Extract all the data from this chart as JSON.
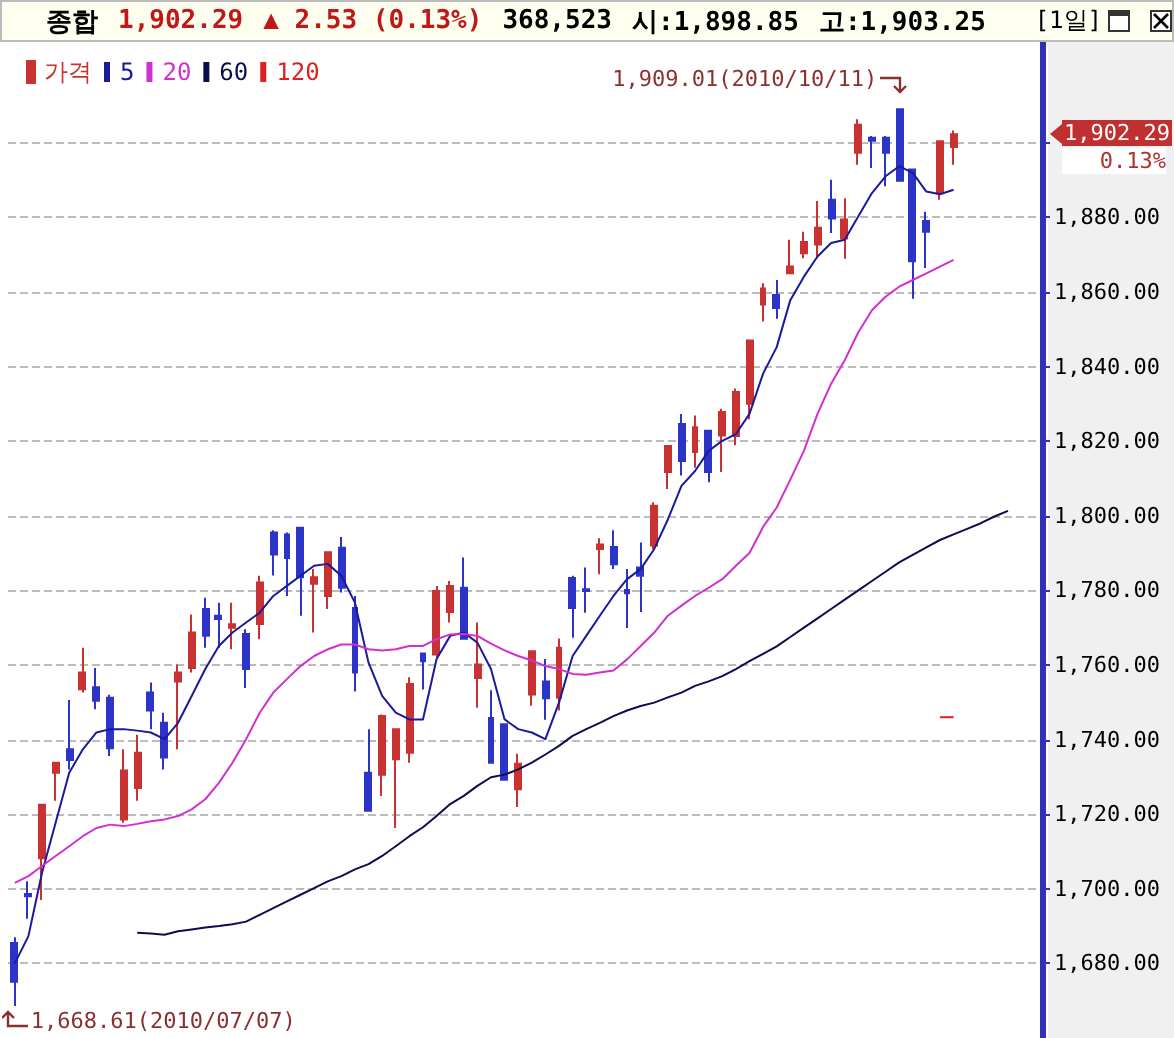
{
  "chart_data": {
    "type": "candlestick",
    "title": "종합",
    "annotations": [
      "1,902.29",
      "▲ 2.53 (0.13%)",
      "368,523",
      "시:1,898.85",
      "고:1,903.25",
      "[1일]",
      "1,909.01(2010/10/11)",
      "1,668.61(2010/07/07)",
      "1,902.29",
      "0.13%"
    ],
    "categories": [
      null,
      null,
      null,
      null,
      null,
      null,
      null,
      null,
      null,
      null,
      null,
      null,
      null,
      null,
      null,
      null,
      null,
      null,
      null,
      null,
      null,
      null,
      null,
      null,
      null,
      null,
      null,
      null,
      null,
      null,
      null,
      null,
      null,
      null,
      null,
      null,
      null,
      null,
      null,
      null,
      null,
      null,
      null,
      null,
      null,
      null,
      null,
      null,
      null,
      null,
      null,
      null,
      null,
      null,
      null,
      null,
      null,
      null,
      null,
      null,
      null,
      null,
      null,
      null,
      null,
      null,
      null,
      null,
      null,
      null,
      null,
      null,
      null,
      null,
      null,
      null
    ],
    "series": [
      {
        "name": "가격",
        "color": "#c83232",
        "ohlc": [
          [
            1685.5,
            1687,
            1668.61,
            1675.1
          ],
          [
            1698.6,
            1702,
            1692,
            1698
          ],
          [
            1708.2,
            1722.5,
            1697,
            1722.5
          ],
          [
            1731.1,
            1734,
            1723.6,
            1733.8
          ],
          [
            1737.4,
            1750.6,
            1732,
            1734.5
          ],
          [
            1753.5,
            1764.6,
            1752.6,
            1758
          ],
          [
            1754,
            1759.2,
            1748.1,
            1750.4
          ],
          [
            1751.2,
            1752,
            1735.6,
            1737.7
          ],
          [
            1718.6,
            1737.4,
            1717.7,
            1731.7
          ],
          [
            1727,
            1741.3,
            1723.6,
            1736.5
          ],
          [
            1752.6,
            1755.3,
            1742.8,
            1747.8
          ],
          [
            1744.5,
            1747.2,
            1732,
            1735.2
          ],
          [
            1755.6,
            1760.1,
            1737.4,
            1758
          ],
          [
            1759.2,
            1773.5,
            1758,
            1768.7
          ],
          [
            1775,
            1778,
            1764.6,
            1767.8
          ],
          [
            1773.2,
            1776.7,
            1764.6,
            1772.3
          ],
          [
            1770,
            1776.7,
            1764.2,
            1770.9
          ],
          [
            1768.3,
            1769.6,
            1753.8,
            1758.9
          ],
          [
            1771,
            1783.9,
            1766.9,
            1782.1
          ],
          [
            1795.5,
            1796.1,
            1784,
            1789.6
          ],
          [
            1795,
            1795.5,
            1778.5,
            1788.7
          ],
          [
            1796.8,
            1796.8,
            1773.2,
            1783.5
          ],
          [
            1781.8,
            1785.7,
            1768.7,
            1783.5
          ],
          [
            1778.5,
            1790.2,
            1775,
            1790.2
          ],
          [
            1791.4,
            1794.3,
            1779.4,
            1780.7
          ],
          [
            1775.3,
            1778.5,
            1752.9,
            1758
          ],
          [
            1731.1,
            1742.8,
            1720.9,
            1720.9
          ],
          [
            1730.6,
            1746.7,
            1724.9,
            1746.3
          ],
          [
            1734.7,
            1742.8,
            1716.3,
            1742.8
          ],
          [
            1736.5,
            1756.7,
            1733.8,
            1754.9
          ],
          [
            1763.1,
            1763.1,
            1753.4,
            1761
          ],
          [
            1762.8,
            1781.2,
            1762.1,
            1779.8
          ],
          [
            1774.2,
            1782.5,
            1771.4,
            1781.2
          ],
          [
            1780.7,
            1788.8,
            1767,
            1767
          ],
          [
            1756.5,
            1771.4,
            1748.5,
            1760.1
          ],
          [
            1745.8,
            1753.2,
            1733.8,
            1733.8
          ],
          [
            1744.1,
            1744.1,
            1729.2,
            1729.2
          ],
          [
            1726.7,
            1736.2,
            1721.9,
            1733.5
          ],
          [
            1752.1,
            1763.7,
            1749.1,
            1763.7
          ],
          [
            1755.6,
            1761.6,
            1745.3,
            1751.1
          ],
          [
            1751.2,
            1767.1,
            1747.8,
            1764.6
          ],
          [
            1783.3,
            1783.9,
            1767.3,
            1775.3
          ],
          [
            1780.3,
            1786.1,
            1774,
            1779.8
          ],
          [
            1791.1,
            1794,
            1784.3,
            1792.3
          ],
          [
            1791.6,
            1796.1,
            1785.7,
            1787
          ],
          [
            1780.1,
            1785.7,
            1769.9,
            1779.2
          ],
          [
            1786.1,
            1792.8,
            1774.2,
            1783.9
          ],
          [
            1792,
            1803.6,
            1791.1,
            1802.7
          ],
          [
            1811.7,
            1818.7,
            1807.2,
            1818.7
          ],
          [
            1824.6,
            1827.3,
            1810.8,
            1814.7
          ],
          [
            1817.1,
            1826.9,
            1812.9,
            1823.7
          ],
          [
            1822.8,
            1822.8,
            1809,
            1811.7
          ],
          [
            1821.5,
            1828.7,
            1811.7,
            1827.8
          ],
          [
            1821.4,
            1834.1,
            1818.9,
            1833.2
          ],
          [
            1830,
            1847,
            1825.9,
            1847
          ],
          [
            1856.6,
            1862.3,
            1852.1,
            1860.9
          ],
          [
            1859.2,
            1863.2,
            1852.8,
            1855.7
          ],
          [
            1865,
            1874,
            1865,
            1866.8
          ],
          [
            1870.4,
            1876.1,
            1869,
            1873.4
          ],
          [
            1872.7,
            1884.4,
            1869,
            1877.2
          ],
          [
            1884.7,
            1890.1,
            1875.8,
            1879.7
          ],
          [
            1874.3,
            1885.1,
            1868.9,
            1879.4
          ],
          [
            1897.3,
            1906.3,
            1894.1,
            1904.8
          ],
          [
            1901.3,
            1901.8,
            1893.2,
            1900.5
          ],
          [
            1901.3,
            1901.8,
            1888.3,
            1897.3
          ],
          [
            1909,
            1909.01,
            1889.8,
            1889.8
          ],
          [
            1892.8,
            1892.8,
            1858.2,
            1868.2
          ],
          [
            1879,
            1881.5,
            1866.4,
            1876.1
          ],
          [
            1886.5,
            1900.4,
            1884.7,
            1900.4
          ],
          [
            1898.85,
            1903.25,
            1894.1,
            1902.29
          ],
          null,
          null,
          null,
          null,
          null,
          null
        ],
        "colors": [
          "#2c34c8",
          "#2c34c8",
          "#c83232",
          "#c83232",
          "#2c34c8",
          "#c83232",
          "#2c34c8",
          "#2c34c8",
          "#c83232",
          "#c83232",
          "#2c34c8",
          "#2c34c8",
          "#c83232",
          "#c83232",
          "#2c34c8",
          "#2c34c8",
          "#c83232",
          "#2c34c8",
          "#c83232",
          "#2c34c8",
          "#2c34c8",
          "#2c34c8",
          "#c83232",
          "#c83232",
          "#2c34c8",
          "#2c34c8",
          "#2c34c8",
          "#c83232",
          "#c83232",
          "#c83232",
          "#2c34c8",
          "#c83232",
          "#c83232",
          "#2c34c8",
          "#c83232",
          "#2c34c8",
          "#2c34c8",
          "#c83232",
          "#c83232",
          "#2c34c8",
          "#c83232",
          "#2c34c8",
          "#2c34c8",
          "#c83232",
          "#2c34c8",
          "#2c34c8",
          "#2c34c8",
          "#c83232",
          "#c83232",
          "#2c34c8",
          "#c83232",
          "#2c34c8",
          "#c83232",
          "#c83232",
          "#c83232",
          "#c83232",
          "#2c34c8",
          "#c83232",
          "#c83232",
          "#c83232",
          "#2c34c8",
          "#c83232",
          "#c83232",
          "#2c34c8",
          "#2c34c8",
          "#2c34c8",
          "#2c34c8",
          "#2c34c8",
          "#c83232",
          "#c83232",
          null,
          null,
          null,
          null,
          null,
          null
        ]
      },
      {
        "name": "5",
        "type": "line",
        "color": "#1a1a9a",
        "values": [
          1680,
          1687.3,
          1704.3,
          1717.7,
          1731.1,
          1737.4,
          1741.9,
          1742.8,
          1742.8,
          1742.4,
          1741.9,
          1740.1,
          1744.5,
          1751.7,
          1758.9,
          1765.1,
          1768.7,
          1771.4,
          1774,
          1778.5,
          1781.2,
          1783.9,
          1786.6,
          1787.1,
          1783.9,
          1776.7,
          1760.6,
          1751.7,
          1747.2,
          1745.4,
          1745.4,
          1761.6,
          1767.8,
          1768.7,
          1766,
          1758.9,
          1745.4,
          1742.8,
          1741.9,
          1740.1,
          1749.9,
          1762.4,
          1767.8,
          1773.2,
          1778.5,
          1783,
          1785.7,
          1791.1,
          1799,
          1808,
          1812,
          1817.4,
          1820.1,
          1821.9,
          1827.3,
          1838.1,
          1845.2,
          1857.8,
          1864.1,
          1869.5,
          1873.1,
          1874,
          1880.3,
          1886.5,
          1891,
          1893.7,
          1891.9,
          1886.9,
          1886.2,
          1887.4,
          null,
          null,
          null,
          null,
          null,
          null
        ]
      },
      {
        "name": "20",
        "type": "line",
        "color": "#d030d0",
        "values": [
          1701.6,
          1703.4,
          1706.1,
          1708.8,
          1711.4,
          1714.1,
          1716.3,
          1717.2,
          1716.8,
          1717.4,
          1718.1,
          1718.6,
          1719.5,
          1721.3,
          1724,
          1728.4,
          1733.8,
          1740.1,
          1747.2,
          1752.6,
          1756.2,
          1759.7,
          1762.4,
          1764.2,
          1765.5,
          1765.5,
          1764.2,
          1763.9,
          1764.2,
          1765.1,
          1765.1,
          1766.9,
          1768.2,
          1768.3,
          1767.8,
          1765.7,
          1763.9,
          1762.4,
          1761.2,
          1759.7,
          1758.9,
          1757.6,
          1757.4,
          1758,
          1758.5,
          1761.5,
          1765.1,
          1768.7,
          1773.2,
          1775.9,
          1778.5,
          1780.7,
          1783,
          1786.6,
          1790,
          1797,
          1802.2,
          1809.7,
          1817.4,
          1827.3,
          1835.4,
          1841.7,
          1849.2,
          1855.1,
          1858.7,
          1861.4,
          1863.2,
          1865,
          1866.8,
          1868.6,
          null,
          null,
          null,
          null,
          null,
          null
        ]
      },
      {
        "name": "60",
        "type": "line",
        "color": "#0c0c50",
        "values": [
          null,
          null,
          null,
          null,
          null,
          null,
          null,
          null,
          null,
          1688.2,
          1688,
          1687.7,
          1688.6,
          1689.1,
          1689.6,
          1690,
          1690.5,
          1691.2,
          1693,
          1694.8,
          1696.6,
          1698.4,
          1700.2,
          1702,
          1703.4,
          1705.2,
          1706.6,
          1708.8,
          1711.4,
          1714.1,
          1716.5,
          1719.5,
          1722.7,
          1724.9,
          1727.6,
          1729.9,
          1730.6,
          1732,
          1733.8,
          1736,
          1738.3,
          1741,
          1742.8,
          1744.5,
          1746.3,
          1747.8,
          1749,
          1749.9,
          1751.3,
          1752.6,
          1754.4,
          1755.6,
          1757,
          1758.9,
          1761,
          1763,
          1765,
          1767.5,
          1770,
          1772.5,
          1775,
          1777.5,
          1780,
          1782.5,
          1785,
          1787.5,
          1789.5,
          1791.5,
          1793.5,
          1795,
          1796.5,
          1798,
          1799.8,
          1801.3,
          null,
          null
        ]
      },
      {
        "name": "120",
        "type": "line",
        "color": "#e02020",
        "values": [
          null,
          null,
          null,
          null,
          null,
          null,
          null,
          null,
          null,
          null,
          null,
          null,
          null,
          null,
          null,
          null,
          null,
          null,
          null,
          null,
          null,
          null,
          null,
          null,
          null,
          null,
          null,
          null,
          null,
          null,
          null,
          null,
          null,
          null,
          null,
          null,
          null,
          null,
          null,
          null,
          null,
          null,
          null,
          null,
          null,
          null,
          null,
          null,
          null,
          null,
          null,
          null,
          null,
          null,
          null,
          null,
          null,
          null,
          null,
          null,
          null,
          null,
          null,
          null,
          null,
          null,
          null,
          null,
          1746,
          1746,
          null,
          null,
          null,
          null,
          null,
          null
        ]
      }
    ],
    "ylim": [
      1660,
      1927
    ],
    "yticks": [
      {
        "value": 1680,
        "label": "1,680.00"
      },
      {
        "value": 1700,
        "label": "1,700.00"
      },
      {
        "value": 1720,
        "label": "1,720.00"
      },
      {
        "value": 1740,
        "label": "1,740.00"
      },
      {
        "value": 1760,
        "label": "1,760.00"
      },
      {
        "value": 1780,
        "label": "1,780.00"
      },
      {
        "value": 1800,
        "label": "1,800.00"
      },
      {
        "value": 1820,
        "label": "1,820.00"
      },
      {
        "value": 1840,
        "label": "1,840.00"
      },
      {
        "value": 1860,
        "label": "1,860.00"
      },
      {
        "value": 1880,
        "label": "1,880.00"
      },
      {
        "value": 1900,
        "label": null
      }
    ],
    "grid": "y",
    "legend": "top left",
    "tick_labels": "y"
  }
}
